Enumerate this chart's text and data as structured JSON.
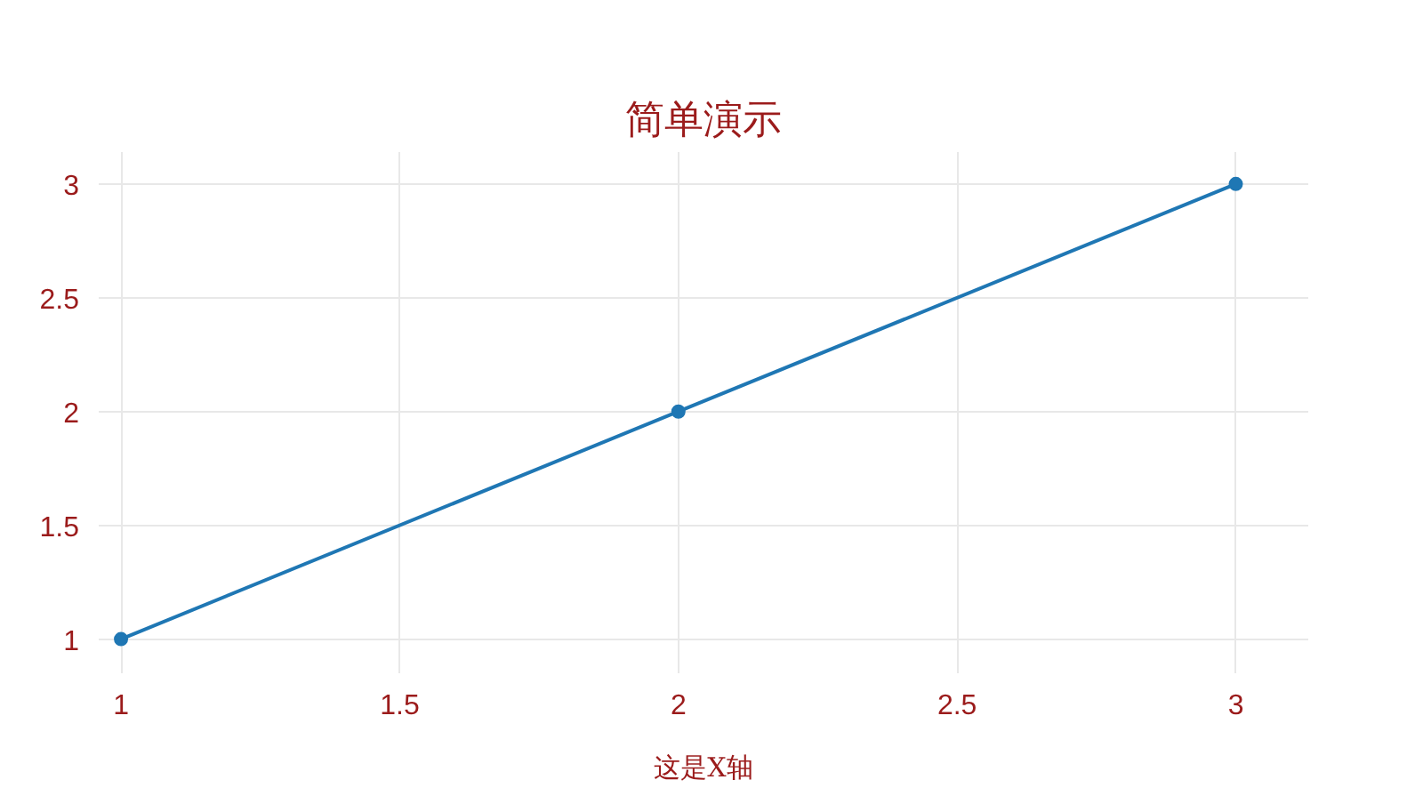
{
  "chart_data": {
    "type": "line",
    "title": "简单演示",
    "xlabel": "这是X轴",
    "x": [
      1,
      2,
      3
    ],
    "series": [
      {
        "color": "#1f77b4",
        "values": [
          1,
          2,
          3
        ]
      }
    ],
    "xlim": [
      0.96,
      3.13
    ],
    "ylim": [
      0.85,
      3.14
    ],
    "xticks": [
      1,
      1.5,
      2,
      2.5,
      3
    ],
    "yticks": [
      1,
      1.5,
      2,
      2.5,
      3
    ],
    "grid": true,
    "marker": "circle",
    "line_style": "solid"
  }
}
